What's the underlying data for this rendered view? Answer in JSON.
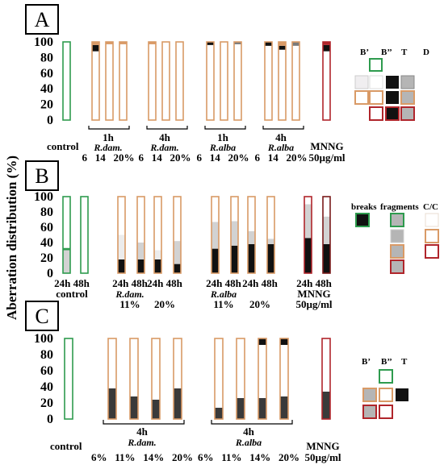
{
  "ylabel": "Aberration distribution (%)",
  "legends": {
    "A": [
      "B’",
      "B’’",
      "T",
      "D"
    ],
    "B": [
      "breaks",
      "fragments",
      "C/C"
    ],
    "C": [
      "B’",
      "B’’",
      "T"
    ]
  },
  "colors": {
    "green": "#2e9b4e",
    "tan": "#d99a66",
    "red": "#b0252b",
    "darkred": "#7a1a1a",
    "black": "#111111",
    "darkgray": "#3a3a3a",
    "midgray": "#7a7a7a",
    "lightgray": "#d2d2d2",
    "palegray": "#ececec",
    "white": "#ffffff"
  },
  "chart_data": [
    {
      "panel": "A",
      "type": "bar",
      "stacked": true,
      "ylim": [
        0,
        100
      ],
      "yticks": [
        0,
        20,
        40,
        60,
        80,
        100
      ],
      "bars": [
        {
          "group": "control",
          "segments": [
            {
              "v": 100,
              "c": "white"
            }
          ],
          "outline": "green"
        },
        {
          "group": "1h R.dam.",
          "conc": "6",
          "segments": [
            {
              "v": 88,
              "c": "white"
            },
            {
              "v": 8,
              "c": "black"
            },
            {
              "v": 4,
              "c": "tan"
            }
          ],
          "outline": "tan"
        },
        {
          "group": "1h R.dam.",
          "conc": "14",
          "segments": [
            {
              "v": 97,
              "c": "white"
            },
            {
              "v": 3,
              "c": "tan"
            }
          ],
          "outline": "tan"
        },
        {
          "group": "1h R.dam.",
          "conc": "20%",
          "segments": [
            {
              "v": 97,
              "c": "white"
            },
            {
              "v": 3,
              "c": "tan"
            }
          ],
          "outline": "tan"
        },
        {
          "group": "4h R.dam.",
          "conc": "6",
          "segments": [
            {
              "v": 97,
              "c": "white"
            },
            {
              "v": 3,
              "c": "tan"
            }
          ],
          "outline": "tan"
        },
        {
          "group": "4h R.dam.",
          "conc": "14",
          "segments": [
            {
              "v": 100,
              "c": "white"
            }
          ],
          "outline": "tan"
        },
        {
          "group": "4h R.dam.",
          "conc": "20%",
          "segments": [
            {
              "v": 100,
              "c": "white"
            }
          ],
          "outline": "tan"
        },
        {
          "group": "1h R.alba",
          "conc": "6",
          "segments": [
            {
              "v": 96,
              "c": "white"
            },
            {
              "v": 4,
              "c": "black"
            }
          ],
          "outline": "tan"
        },
        {
          "group": "1h R.alba",
          "conc": "14",
          "segments": [
            {
              "v": 100,
              "c": "white"
            }
          ],
          "outline": "tan"
        },
        {
          "group": "1h R.alba",
          "conc": "20%",
          "segments": [
            {
              "v": 97,
              "c": "white"
            },
            {
              "v": 3,
              "c": "midgray"
            }
          ],
          "outline": "tan"
        },
        {
          "group": "4h R.alba",
          "conc": "6",
          "segments": [
            {
              "v": 95,
              "c": "white"
            },
            {
              "v": 5,
              "c": "black"
            }
          ],
          "outline": "tan"
        },
        {
          "group": "4h R.alba",
          "conc": "14",
          "segments": [
            {
              "v": 90,
              "c": "white"
            },
            {
              "v": 5,
              "c": "black"
            },
            {
              "v": 5,
              "c": "tan"
            }
          ],
          "outline": "tan"
        },
        {
          "group": "4h R.alba",
          "conc": "20%",
          "segments": [
            {
              "v": 95,
              "c": "white"
            },
            {
              "v": 5,
              "c": "midgray"
            }
          ],
          "outline": "tan"
        },
        {
          "group": "MNNG 50µg/ml",
          "conc": "",
          "segments": [
            {
              "v": 88,
              "c": "white"
            },
            {
              "v": 8,
              "c": "black"
            },
            {
              "v": 4,
              "c": "red"
            }
          ],
          "outline": "red"
        }
      ],
      "labels": {
        "control": "control",
        "groups": [
          {
            "time": "1h",
            "name": "R.dam.",
            "concs": "6   14   20%"
          },
          {
            "time": "4h",
            "name": "R.dam.",
            "concs": "6   14   20%"
          },
          {
            "time": "1h",
            "name": "R.alba",
            "concs": "6   14   20%"
          },
          {
            "time": "4h",
            "name": "R.alba",
            "concs": "6   14   20%"
          }
        ],
        "mnng": "MNNG",
        "mnng_conc": "50µg/ml"
      }
    },
    {
      "panel": "B",
      "type": "bar",
      "stacked": true,
      "ylim": [
        0,
        100
      ],
      "yticks": [
        0,
        20,
        40,
        60,
        80,
        100
      ],
      "bars": [
        {
          "group": "control",
          "time": "24h",
          "segments": [
            {
              "v": 30,
              "c": "lightgray"
            },
            {
              "v": 3,
              "c": "green"
            },
            {
              "v": 67,
              "c": "white"
            }
          ],
          "outline": "green"
        },
        {
          "group": "control",
          "time": "48h",
          "segments": [
            {
              "v": 100,
              "c": "white"
            }
          ],
          "outline": "green"
        },
        {
          "group": "R.dam. 11%",
          "time": "24h",
          "segments": [
            {
              "v": 18,
              "c": "black"
            },
            {
              "v": 32,
              "c": "palegray"
            },
            {
              "v": 50,
              "c": "white"
            }
          ],
          "outline": "tan"
        },
        {
          "group": "R.dam. 11%",
          "time": "48h",
          "segments": [
            {
              "v": 18,
              "c": "black"
            },
            {
              "v": 22,
              "c": "lightgray"
            },
            {
              "v": 60,
              "c": "white"
            }
          ],
          "outline": "tan"
        },
        {
          "group": "R.dam. 20%",
          "time": "24h",
          "segments": [
            {
              "v": 18,
              "c": "black"
            },
            {
              "v": 12,
              "c": "palegray"
            },
            {
              "v": 70,
              "c": "white"
            }
          ],
          "outline": "tan"
        },
        {
          "group": "R.dam. 20%",
          "time": "48h",
          "segments": [
            {
              "v": 12,
              "c": "black"
            },
            {
              "v": 30,
              "c": "lightgray"
            },
            {
              "v": 58,
              "c": "white"
            }
          ],
          "outline": "tan"
        },
        {
          "group": "R.alba 11%",
          "time": "24h",
          "segments": [
            {
              "v": 32,
              "c": "black"
            },
            {
              "v": 35,
              "c": "lightgray"
            },
            {
              "v": 33,
              "c": "white"
            }
          ],
          "outline": "tan"
        },
        {
          "group": "R.alba 11%",
          "time": "48h",
          "segments": [
            {
              "v": 36,
              "c": "black"
            },
            {
              "v": 32,
              "c": "lightgray"
            },
            {
              "v": 32,
              "c": "white"
            }
          ],
          "outline": "tan"
        },
        {
          "group": "R.alba 20%",
          "time": "24h",
          "segments": [
            {
              "v": 38,
              "c": "black"
            },
            {
              "v": 17,
              "c": "lightgray"
            },
            {
              "v": 45,
              "c": "white"
            }
          ],
          "outline": "tan"
        },
        {
          "group": "R.alba 20%",
          "time": "48h",
          "segments": [
            {
              "v": 38,
              "c": "black"
            },
            {
              "v": 7,
              "c": "lightgray"
            },
            {
              "v": 55,
              "c": "white"
            }
          ],
          "outline": "tan"
        },
        {
          "group": "MNNG 50µg/ml",
          "time": "24h",
          "segments": [
            {
              "v": 46,
              "c": "black"
            },
            {
              "v": 44,
              "c": "lightgray"
            },
            {
              "v": 10,
              "c": "white"
            }
          ],
          "outline": "red"
        },
        {
          "group": "MNNG 50µg/ml",
          "time": "48h",
          "segments": [
            {
              "v": 38,
              "c": "black"
            },
            {
              "v": 36,
              "c": "lightgray"
            },
            {
              "v": 26,
              "c": "white"
            }
          ],
          "outline": "darkred"
        }
      ],
      "labels": {
        "pairs": [
          "24h 48h",
          "24h 48h",
          "24h 48h",
          "24h 48h",
          "24h 48h",
          "24h 48h"
        ],
        "sub": [
          "control",
          "R.dam.",
          "",
          "R.alba",
          "",
          "MNNG"
        ],
        "conc": [
          "",
          "11%",
          "20%",
          "11%",
          "20%",
          "50µg/ml"
        ]
      }
    },
    {
      "panel": "C",
      "type": "bar",
      "stacked": true,
      "ylim": [
        0,
        100
      ],
      "yticks": [
        0,
        20,
        40,
        60,
        80,
        100
      ],
      "bars": [
        {
          "group": "control",
          "segments": [
            {
              "v": 100,
              "c": "white"
            }
          ],
          "outline": "green"
        },
        {
          "group": "4h R.dam.",
          "conc": "6%",
          "segments": [
            {
              "v": 38,
              "c": "darkgray"
            },
            {
              "v": 62,
              "c": "white"
            }
          ],
          "outline": "tan"
        },
        {
          "group": "4h R.dam.",
          "conc": "11%",
          "segments": [
            {
              "v": 28,
              "c": "darkgray"
            },
            {
              "v": 72,
              "c": "white"
            }
          ],
          "outline": "tan"
        },
        {
          "group": "4h R.dam.",
          "conc": "14%",
          "segments": [
            {
              "v": 24,
              "c": "darkgray"
            },
            {
              "v": 76,
              "c": "white"
            }
          ],
          "outline": "tan"
        },
        {
          "group": "4h R.dam.",
          "conc": "20%",
          "segments": [
            {
              "v": 38,
              "c": "darkgray"
            },
            {
              "v": 62,
              "c": "white"
            }
          ],
          "outline": "tan"
        },
        {
          "group": "4h R.alba",
          "conc": "6%",
          "segments": [
            {
              "v": 14,
              "c": "darkgray"
            },
            {
              "v": 86,
              "c": "white"
            }
          ],
          "outline": "tan"
        },
        {
          "group": "4h R.alba",
          "conc": "11%",
          "segments": [
            {
              "v": 26,
              "c": "darkgray"
            },
            {
              "v": 74,
              "c": "white"
            }
          ],
          "outline": "tan"
        },
        {
          "group": "4h R.alba",
          "conc": "14%",
          "segments": [
            {
              "v": 26,
              "c": "darkgray"
            },
            {
              "v": 66,
              "c": "white"
            },
            {
              "v": 8,
              "c": "black"
            }
          ],
          "outline": "tan"
        },
        {
          "group": "4h R.alba",
          "conc": "20%",
          "segments": [
            {
              "v": 28,
              "c": "darkgray"
            },
            {
              "v": 64,
              "c": "white"
            },
            {
              "v": 8,
              "c": "black"
            }
          ],
          "outline": "tan"
        },
        {
          "group": "MNNG 50µg/ml",
          "conc": "",
          "segments": [
            {
              "v": 34,
              "c": "darkgray"
            },
            {
              "v": 66,
              "c": "white"
            }
          ],
          "outline": "red"
        }
      ],
      "labels": {
        "control": "control",
        "groups": [
          {
            "time": "4h",
            "name": "R.dam.",
            "concs": "6%   11%   14%   20%"
          },
          {
            "time": "4h",
            "name": "R.alba",
            "concs": "6%   11%   14%   20%"
          }
        ],
        "mnng": "MNNG",
        "mnng_conc": "50µg/ml"
      }
    }
  ]
}
